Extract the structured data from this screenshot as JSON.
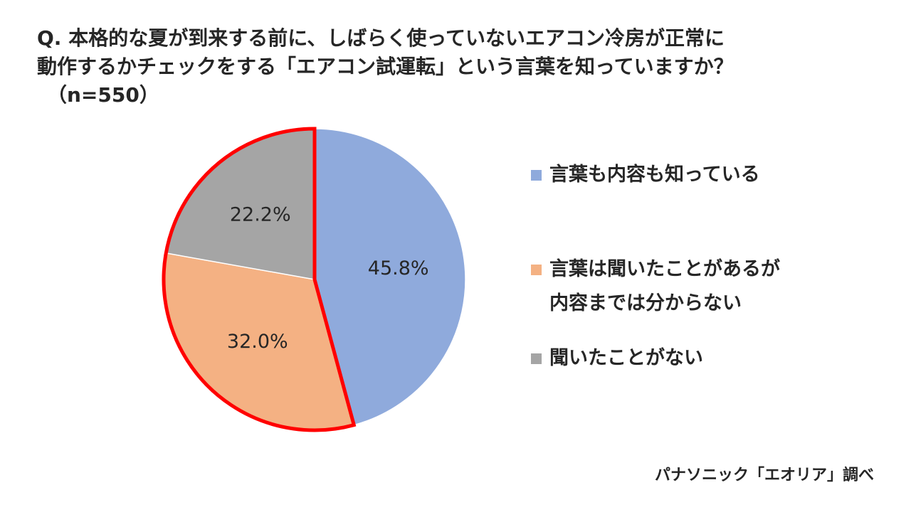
{
  "title": {
    "line1": "Q. 本格的な夏が到来する前に、しばらく使っていないエアコン冷房が正常に",
    "line2": "動作するかチェックをする「エアコン試運転」という言葉を知っていますか？",
    "line3": "（n=550）"
  },
  "chart_data": {
    "type": "pie",
    "title": "Q. 本格的な夏が到来する前に、しばらく使っていないエアコン冷房が正常に動作するかチェックをする「エアコン試運転」という言葉を知っていますか？（n=550）",
    "slices": [
      {
        "name": "言葉も内容も知っている",
        "value": 45.8,
        "label": "45.8%",
        "color": "#8faadc"
      },
      {
        "name": "言葉は聞いたことがあるが内容までは分からない",
        "value": 32.0,
        "label": "32.0%",
        "color": "#f4b183"
      },
      {
        "name": "聞いたことがない",
        "value": 22.2,
        "label": "22.2%",
        "color": "#a5a5a5"
      }
    ],
    "highlight": {
      "slices": [
        1,
        2
      ],
      "outline_color": "#ff0000"
    },
    "start_angle": "12 o'clock",
    "direction": "clockwise",
    "legend_placement": "right"
  },
  "legend": {
    "items": [
      {
        "label_lines": [
          "言葉も内容も知っている"
        ],
        "color": "#8faadc"
      },
      {
        "label_lines": [
          "言葉は聞いたことがあるが",
          "内容までは分からない"
        ],
        "color": "#f4b183"
      },
      {
        "label_lines": [
          "聞いたことがない"
        ],
        "color": "#a5a5a5"
      }
    ]
  },
  "source": "パナソニック「エオリア」調べ"
}
